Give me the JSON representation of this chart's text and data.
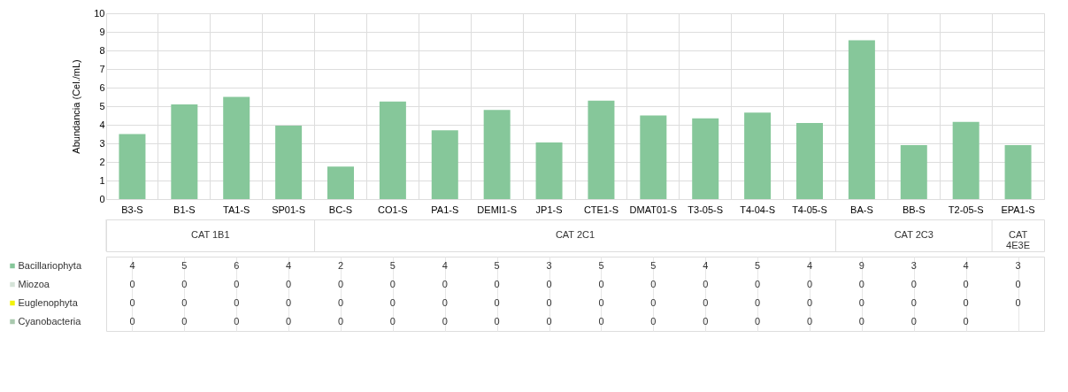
{
  "chart_data": {
    "type": "bar",
    "ylabel": "Abundancia (Cel./mL)",
    "ylim": [
      0,
      10
    ],
    "yticks": [
      0,
      1,
      2,
      3,
      4,
      5,
      6,
      7,
      8,
      9,
      10
    ],
    "grid": true,
    "legend": "bottom",
    "categories": [
      "B3-S",
      "B1-S",
      "TA1-S",
      "SP01-S",
      "BC-S",
      "CO1-S",
      "PA1-S",
      "DEMI1-S",
      "JP1-S",
      "CTE1-S",
      "DMAT01-S",
      "T3-05-S",
      "T4-04-S",
      "T4-05-S",
      "BA-S",
      "BB-S",
      "T2-05-S",
      "EPA1-S"
    ],
    "series": [
      {
        "name": "Bacillariophyta",
        "color": "#86c79a",
        "values": [
          3.5,
          5.1,
          5.5,
          3.95,
          1.75,
          5.25,
          3.7,
          4.8,
          3.05,
          5.3,
          4.5,
          4.35,
          4.65,
          4.1,
          8.55,
          2.9,
          4.15,
          2.9
        ],
        "value_labels": [
          "4",
          "5",
          "6",
          "4",
          "2",
          "5",
          "4",
          "5",
          "3",
          "5",
          "5",
          "4",
          "5",
          "4",
          "9",
          "3",
          "4",
          "3"
        ]
      },
      {
        "name": "Miozoa",
        "color": "#d5e3d8",
        "values": [
          0,
          0,
          0,
          0,
          0,
          0,
          0,
          0,
          0,
          0,
          0,
          0,
          0,
          0,
          0,
          0,
          0,
          0
        ],
        "value_labels": [
          "0",
          "0",
          "0",
          "0",
          "0",
          "0",
          "0",
          "0",
          "0",
          "0",
          "0",
          "0",
          "0",
          "0",
          "0",
          "0",
          "0",
          "0"
        ]
      },
      {
        "name": "Euglenophyta",
        "color": "#f2f20a",
        "values": [
          0,
          0,
          0,
          0,
          0,
          0,
          0,
          0,
          0,
          0,
          0,
          0,
          0,
          0,
          0,
          0,
          0,
          0
        ],
        "value_labels": [
          "0",
          "0",
          "0",
          "0",
          "0",
          "0",
          "0",
          "0",
          "0",
          "0",
          "0",
          "0",
          "0",
          "0",
          "0",
          "0",
          "0",
          "0"
        ]
      },
      {
        "name": "Cyanobacteria",
        "color": "#a9c9ae",
        "values": [
          0,
          0,
          0,
          0,
          0,
          0,
          0,
          0,
          0,
          0,
          0,
          0,
          0,
          0,
          0,
          0,
          0,
          null
        ],
        "value_labels": [
          "0",
          "0",
          "0",
          "0",
          "0",
          "0",
          "0",
          "0",
          "0",
          "0",
          "0",
          "0",
          "0",
          "0",
          "0",
          "0",
          "0",
          null
        ]
      }
    ],
    "annotations": [
      "CAT 1B1",
      "CAT 2C1",
      "CAT 2C3",
      "CAT 4E3E"
    ]
  }
}
